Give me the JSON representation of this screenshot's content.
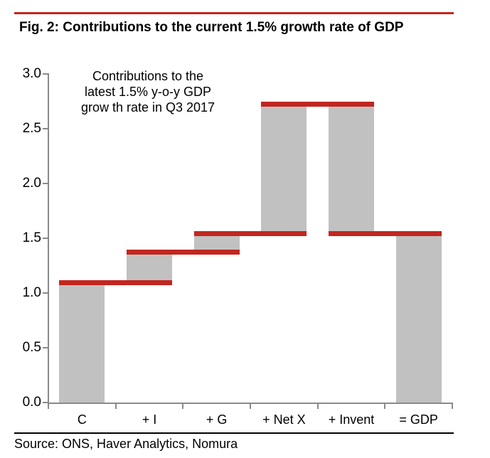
{
  "report": {
    "title": "Fig. 2: Contributions to the current 1.5% growth rate of GDP",
    "source": "Source: ONS, Haver Analytics, Nomura"
  },
  "annotation": {
    "line1": "Contributions to the",
    "line2": "latest 1.5% y-o-y GDP",
    "line3": "grow th rate in Q3 2017"
  },
  "chart_data": {
    "type": "bar",
    "subtype": "waterfall",
    "title": "Contributions to the latest 1.5% y-o-y GDP grow th rate in Q3 2017",
    "categories": [
      "C",
      "+ I",
      "+ G",
      "+ Net X",
      "+ Invent",
      "= GDP"
    ],
    "segments": [
      {
        "category": "C",
        "from": 0,
        "to": 1.07
      },
      {
        "category": "+ I",
        "from": 1.07,
        "to": 1.35
      },
      {
        "category": "+ G",
        "from": 1.35,
        "to": 1.52
      },
      {
        "category": "+ Net X",
        "from": 1.52,
        "to": 2.7
      },
      {
        "category": "+ Invent",
        "from": 2.7,
        "to": 1.52
      },
      {
        "category": "= GDP",
        "from": 0,
        "to": 1.52
      }
    ],
    "contributions": [
      1.07,
      0.28,
      0.17,
      1.18,
      -1.18,
      1.52
    ],
    "total_growth_rate": 1.5,
    "marker_lines": [
      {
        "level": 1.07,
        "span": [
          0,
          1
        ]
      },
      {
        "level": 1.35,
        "span": [
          1,
          2
        ]
      },
      {
        "level": 1.52,
        "span": [
          2,
          3
        ]
      },
      {
        "level": 2.7,
        "span": [
          3,
          4
        ]
      },
      {
        "level": 1.52,
        "span": [
          4,
          5
        ]
      }
    ],
    "ylim": [
      0,
      3
    ],
    "ytick_labels": [
      "0.0",
      "0.5",
      "1.0",
      "1.5",
      "2.0",
      "2.5",
      "3.0"
    ],
    "grid": false,
    "legend": false,
    "colors": {
      "bar": "#c1c1c1",
      "marker": "#c2261f",
      "axis": "#8a8a8a",
      "rule_top": "#c2261f",
      "rule_bottom": "#000000",
      "text": "#000000"
    }
  }
}
